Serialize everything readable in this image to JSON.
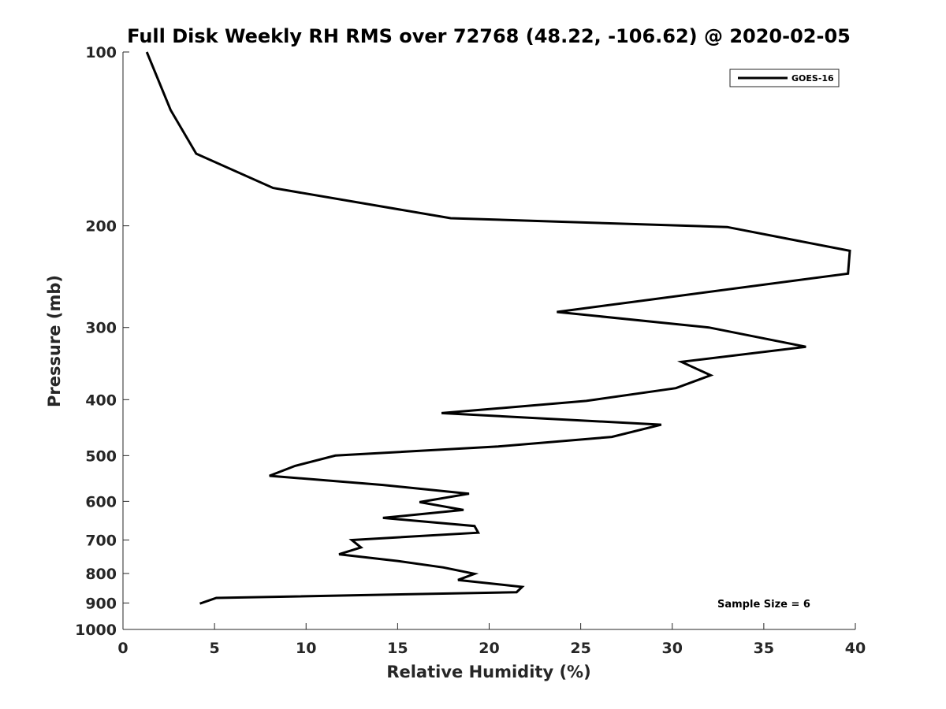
{
  "chart_data": {
    "type": "line",
    "title": "Full Disk Weekly RH RMS over 72768 (48.22, -106.62) @ 2020-02-05",
    "xlabel": "Relative Humidity (%)",
    "ylabel": "Pressure (mb)",
    "xlim": [
      0,
      40
    ],
    "ylim": [
      100,
      1000
    ],
    "yscale": "log",
    "y_reversed": true,
    "xticks": [
      0,
      5,
      10,
      15,
      20,
      25,
      30,
      35,
      40
    ],
    "yticks": [
      100,
      200,
      300,
      400,
      500,
      600,
      700,
      800,
      900,
      1000
    ],
    "grid": false,
    "legend_position": "top-right",
    "series": [
      {
        "name": "GOES-16",
        "color": "#000000",
        "points": [
          {
            "x": 1.3,
            "y": 100
          },
          {
            "x": 2.6,
            "y": 126
          },
          {
            "x": 4.0,
            "y": 150
          },
          {
            "x": 8.2,
            "y": 172
          },
          {
            "x": 17.9,
            "y": 194
          },
          {
            "x": 33.0,
            "y": 201
          },
          {
            "x": 39.7,
            "y": 221
          },
          {
            "x": 39.6,
            "y": 242
          },
          {
            "x": 23.7,
            "y": 282
          },
          {
            "x": 32.0,
            "y": 300
          },
          {
            "x": 37.3,
            "y": 324
          },
          {
            "x": 30.5,
            "y": 344
          },
          {
            "x": 32.1,
            "y": 363
          },
          {
            "x": 30.2,
            "y": 382
          },
          {
            "x": 25.3,
            "y": 402
          },
          {
            "x": 17.4,
            "y": 422
          },
          {
            "x": 29.4,
            "y": 442
          },
          {
            "x": 26.7,
            "y": 464
          },
          {
            "x": 20.5,
            "y": 482
          },
          {
            "x": 11.6,
            "y": 500
          },
          {
            "x": 9.4,
            "y": 521
          },
          {
            "x": 8.0,
            "y": 542
          },
          {
            "x": 14.2,
            "y": 562
          },
          {
            "x": 18.9,
            "y": 582
          },
          {
            "x": 16.2,
            "y": 602
          },
          {
            "x": 18.6,
            "y": 621
          },
          {
            "x": 14.2,
            "y": 641
          },
          {
            "x": 19.2,
            "y": 662
          },
          {
            "x": 19.4,
            "y": 680
          },
          {
            "x": 12.5,
            "y": 700
          },
          {
            "x": 13.0,
            "y": 721
          },
          {
            "x": 11.8,
            "y": 741
          },
          {
            "x": 15.0,
            "y": 761
          },
          {
            "x": 17.5,
            "y": 781
          },
          {
            "x": 19.2,
            "y": 801
          },
          {
            "x": 18.3,
            "y": 821
          },
          {
            "x": 21.8,
            "y": 844
          },
          {
            "x": 21.5,
            "y": 862
          },
          {
            "x": 5.1,
            "y": 882
          },
          {
            "x": 4.2,
            "y": 902
          }
        ]
      }
    ],
    "annotations": [
      {
        "text": "Sample Size = 6",
        "x": 35.8,
        "y": 890
      }
    ]
  }
}
